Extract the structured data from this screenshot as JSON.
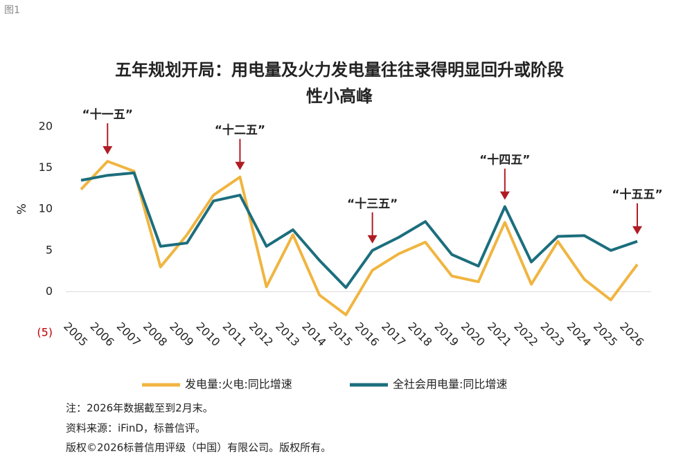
{
  "figure_label": "图1",
  "chart_data": {
    "type": "line",
    "title": [
      "五年规划开局：用电量及火力发电量往往录得明显回升或阶段",
      "性小高峰"
    ],
    "y_label": "%",
    "categories": [
      "2005",
      "2006",
      "2007",
      "2008",
      "2009",
      "2010",
      "2011",
      "2012",
      "2013",
      "2014",
      "2015",
      "2016",
      "2017",
      "2018",
      "2019",
      "2020",
      "2021",
      "2022",
      "2023",
      "2024",
      "2025",
      "2026"
    ],
    "series": [
      {
        "name": "发电量:火电:同比增速",
        "color": "#f0b540",
        "values": [
          12.4,
          15.8,
          14.6,
          3.0,
          6.9,
          11.7,
          13.9,
          0.6,
          6.9,
          -0.4,
          -2.8,
          2.6,
          4.6,
          6.0,
          1.9,
          1.2,
          8.4,
          0.9,
          6.1,
          1.5,
          -1.0,
          3.3
        ]
      },
      {
        "name": "全社会用电量:同比增速",
        "color": "#1c6e7d",
        "values": [
          13.5,
          14.1,
          14.4,
          5.5,
          5.9,
          11.0,
          11.7,
          5.5,
          7.5,
          3.8,
          0.5,
          5.0,
          6.6,
          8.5,
          4.5,
          3.1,
          10.3,
          3.6,
          6.7,
          6.8,
          5.0,
          6.1
        ]
      }
    ],
    "ylim": [
      -5,
      20
    ],
    "yticks": [
      {
        "value": -5,
        "label": "(5)"
      },
      0,
      5,
      10,
      15,
      20
    ],
    "negative_tick_color": "#c00000",
    "annotation_color": "#b01c24",
    "annotations": [
      {
        "text": "“十一五”",
        "category": "2006"
      },
      {
        "text": "“十二五”",
        "category": "2011"
      },
      {
        "text": "“十三五”",
        "category": "2016"
      },
      {
        "text": "“十四五”",
        "category": "2021"
      },
      {
        "text": "“十五五”",
        "category": "2026"
      }
    ]
  },
  "notes": [
    "注：2026年数据截至到2月末。",
    "资料来源：iFinD，标普信评。",
    "版权©2026标普信用评级（中国）有限公司。版权所有。"
  ]
}
